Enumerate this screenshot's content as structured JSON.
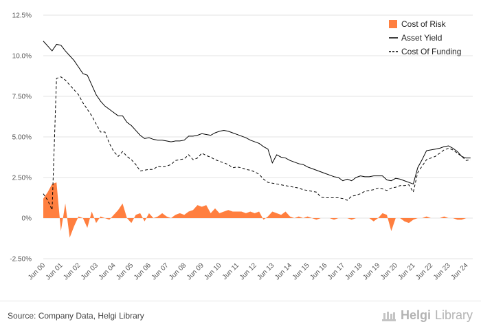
{
  "chart_data": {
    "type": "line",
    "ylim": [
      -2.5,
      12.5
    ],
    "y_ticks": [
      "-2.50%",
      "0%",
      "2.50%",
      "5.00%",
      "7.50%",
      "10.0%",
      "12.5%"
    ],
    "y_tick_values": [
      -2.5,
      0,
      2.5,
      5,
      7.5,
      10,
      12.5
    ],
    "x_start": 2000.5,
    "x_end": 2024.875,
    "x_ticks": [
      "Jun 00",
      "Jun 01",
      "Jun 02",
      "Jun 03",
      "Jun 04",
      "Jun 05",
      "Jun 06",
      "Jun 07",
      "Jun 08",
      "Jun 09",
      "Jun 10",
      "Jun 11",
      "Jun 12",
      "Jun 13",
      "Jun 14",
      "Jun 15",
      "Jun 16",
      "Jun 17",
      "Jun 18",
      "Jun 19",
      "Jun 20",
      "Jun 21",
      "Jun 22",
      "Jun 23",
      "Jun 24"
    ],
    "grid": "horizontal",
    "legend_position": "top-right",
    "colors": {
      "cost_of_risk": "#ff7f3f",
      "asset_yield": "#000000",
      "cost_of_funding": "#000000",
      "grid": "#e3e3e3"
    },
    "series": [
      {
        "name": "Cost of Risk",
        "style": "area",
        "x": [
          2000.5,
          2000.75,
          2001.0,
          2001.25,
          2001.5,
          2001.75,
          2002.0,
          2002.25,
          2002.5,
          2002.75,
          2003.0,
          2003.25,
          2003.5,
          2003.75,
          2004.0,
          2004.25,
          2004.5,
          2004.75,
          2005.0,
          2005.25,
          2005.5,
          2005.75,
          2006.0,
          2006.25,
          2006.5,
          2006.75,
          2007.0,
          2007.25,
          2007.5,
          2007.75,
          2008.0,
          2008.25,
          2008.5,
          2008.75,
          2009.0,
          2009.25,
          2009.5,
          2009.75,
          2010.0,
          2010.25,
          2010.5,
          2010.75,
          2011.0,
          2011.25,
          2011.5,
          2011.75,
          2012.0,
          2012.25,
          2012.5,
          2012.75,
          2013.0,
          2013.25,
          2013.5,
          2013.75,
          2014.0,
          2014.25,
          2014.5,
          2014.75,
          2015.0,
          2015.25,
          2015.5,
          2015.75,
          2016.0,
          2016.25,
          2016.5,
          2016.75,
          2017.0,
          2017.25,
          2017.5,
          2017.75,
          2018.0,
          2018.25,
          2018.5,
          2018.75,
          2019.0,
          2019.25,
          2019.5,
          2019.75,
          2020.0,
          2020.25,
          2020.5,
          2020.75,
          2021.0,
          2021.25,
          2021.5,
          2021.75,
          2022.0,
          2022.25,
          2022.5,
          2022.75,
          2023.0,
          2023.25,
          2023.5,
          2023.75,
          2024.0,
          2024.25,
          2024.5,
          2024.75
        ],
        "values": [
          1.2,
          1.6,
          2.1,
          2.2,
          -0.8,
          0.9,
          -1.2,
          -0.5,
          0.1,
          0.0,
          -0.6,
          0.4,
          -0.3,
          0.1,
          0.0,
          -0.1,
          0.2,
          0.5,
          0.9,
          0.0,
          -0.3,
          0.2,
          0.3,
          -0.2,
          0.3,
          0.0,
          0.1,
          0.3,
          0.1,
          0.0,
          0.2,
          0.3,
          0.2,
          0.4,
          0.5,
          0.8,
          0.7,
          0.8,
          0.3,
          0.6,
          0.3,
          0.4,
          0.5,
          0.4,
          0.4,
          0.4,
          0.3,
          0.4,
          0.3,
          0.4,
          -0.1,
          0.1,
          0.4,
          0.3,
          0.2,
          0.4,
          0.1,
          0.0,
          0.1,
          0.0,
          0.1,
          0.0,
          -0.1,
          0.0,
          0.0,
          0.0,
          -0.1,
          0.0,
          0.0,
          0.0,
          -0.1,
          0.0,
          0.0,
          0.0,
          0.0,
          -0.2,
          0.0,
          0.3,
          0.2,
          -0.8,
          0.0,
          0.0,
          -0.2,
          -0.3,
          -0.1,
          0.0,
          0.0,
          0.1,
          0.0,
          0.0,
          0.0,
          0.1,
          0.0,
          0.0,
          -0.1,
          -0.1,
          0.0,
          0.0
        ]
      },
      {
        "name": "Asset Yield",
        "style": "solid",
        "x": [
          2000.5,
          2000.75,
          2001.0,
          2001.25,
          2001.5,
          2001.75,
          2002.0,
          2002.25,
          2002.5,
          2002.75,
          2003.0,
          2003.25,
          2003.5,
          2003.75,
          2004.0,
          2004.25,
          2004.5,
          2004.75,
          2005.0,
          2005.25,
          2005.5,
          2005.75,
          2006.0,
          2006.25,
          2006.5,
          2006.75,
          2007.0,
          2007.25,
          2007.5,
          2007.75,
          2008.0,
          2008.25,
          2008.5,
          2008.75,
          2009.0,
          2009.25,
          2009.5,
          2009.75,
          2010.0,
          2010.25,
          2010.5,
          2010.75,
          2011.0,
          2011.25,
          2011.5,
          2011.75,
          2012.0,
          2012.25,
          2012.5,
          2012.75,
          2013.0,
          2013.25,
          2013.5,
          2013.75,
          2014.0,
          2014.25,
          2014.5,
          2014.75,
          2015.0,
          2015.25,
          2015.5,
          2015.75,
          2016.0,
          2016.25,
          2016.5,
          2016.75,
          2017.0,
          2017.25,
          2017.5,
          2017.75,
          2018.0,
          2018.25,
          2018.5,
          2018.75,
          2019.0,
          2019.25,
          2019.5,
          2019.75,
          2020.0,
          2020.25,
          2020.5,
          2020.75,
          2021.0,
          2021.25,
          2021.5,
          2021.75,
          2022.0,
          2022.25,
          2022.5,
          2022.75,
          2023.0,
          2023.25,
          2023.5,
          2023.75,
          2024.0,
          2024.25,
          2024.5,
          2024.75
        ],
        "values": [
          10.9,
          10.6,
          10.3,
          10.7,
          10.65,
          10.3,
          10.0,
          9.7,
          9.3,
          8.9,
          8.8,
          8.2,
          7.6,
          7.2,
          6.9,
          6.7,
          6.5,
          6.3,
          6.3,
          5.9,
          5.7,
          5.4,
          5.1,
          4.9,
          4.95,
          4.85,
          4.8,
          4.8,
          4.75,
          4.7,
          4.75,
          4.75,
          4.8,
          5.05,
          5.05,
          5.1,
          5.2,
          5.15,
          5.1,
          5.25,
          5.35,
          5.4,
          5.35,
          5.25,
          5.15,
          5.05,
          4.95,
          4.8,
          4.7,
          4.6,
          4.4,
          4.25,
          3.4,
          3.9,
          3.75,
          3.7,
          3.55,
          3.45,
          3.35,
          3.3,
          3.15,
          3.05,
          2.95,
          2.85,
          2.75,
          2.65,
          2.55,
          2.5,
          2.3,
          2.4,
          2.3,
          2.5,
          2.6,
          2.55,
          2.55,
          2.6,
          2.6,
          2.6,
          2.35,
          2.3,
          2.45,
          2.4,
          2.3,
          2.2,
          2.1,
          3.1,
          3.6,
          4.15,
          4.2,
          4.25,
          4.3,
          4.4,
          4.45,
          4.3,
          4.1,
          3.8,
          3.7,
          3.7
        ]
      },
      {
        "name": "Cost Of Funding",
        "style": "dashed",
        "x": [
          2000.5,
          2000.75,
          2001.0,
          2001.25,
          2001.5,
          2001.75,
          2002.0,
          2002.25,
          2002.5,
          2002.75,
          2003.0,
          2003.25,
          2003.5,
          2003.75,
          2004.0,
          2004.25,
          2004.5,
          2004.75,
          2005.0,
          2005.25,
          2005.5,
          2005.75,
          2006.0,
          2006.25,
          2006.5,
          2006.75,
          2007.0,
          2007.25,
          2007.5,
          2007.75,
          2008.0,
          2008.25,
          2008.5,
          2008.75,
          2009.0,
          2009.25,
          2009.5,
          2009.75,
          2010.0,
          2010.25,
          2010.5,
          2010.75,
          2011.0,
          2011.25,
          2011.5,
          2011.75,
          2012.0,
          2012.25,
          2012.5,
          2012.75,
          2013.0,
          2013.25,
          2013.5,
          2013.75,
          2014.0,
          2014.25,
          2014.5,
          2014.75,
          2015.0,
          2015.25,
          2015.5,
          2015.75,
          2016.0,
          2016.25,
          2016.5,
          2016.75,
          2017.0,
          2017.25,
          2017.5,
          2017.75,
          2018.0,
          2018.25,
          2018.5,
          2018.75,
          2019.0,
          2019.25,
          2019.5,
          2019.75,
          2020.0,
          2020.25,
          2020.5,
          2020.75,
          2021.0,
          2021.25,
          2021.5,
          2021.75,
          2022.0,
          2022.25,
          2022.5,
          2022.75,
          2023.0,
          2023.25,
          2023.5,
          2023.75,
          2024.0,
          2024.25,
          2024.5,
          2024.75
        ],
        "values": [
          1.5,
          1.1,
          0.5,
          8.6,
          8.7,
          8.5,
          8.2,
          7.9,
          7.6,
          7.1,
          6.7,
          6.3,
          5.8,
          5.3,
          5.3,
          4.6,
          4.1,
          3.8,
          4.1,
          3.8,
          3.6,
          3.3,
          2.9,
          2.95,
          3.0,
          3.0,
          3.2,
          3.15,
          3.2,
          3.3,
          3.55,
          3.6,
          3.65,
          3.9,
          3.6,
          3.7,
          4.0,
          3.85,
          3.75,
          3.6,
          3.5,
          3.4,
          3.3,
          3.1,
          3.15,
          3.1,
          3.0,
          2.95,
          2.85,
          2.7,
          2.4,
          2.2,
          2.15,
          2.1,
          2.05,
          2.0,
          1.95,
          1.9,
          1.85,
          1.75,
          1.7,
          1.65,
          1.6,
          1.3,
          1.25,
          1.25,
          1.25,
          1.25,
          1.2,
          1.1,
          1.35,
          1.4,
          1.5,
          1.65,
          1.7,
          1.75,
          1.85,
          1.8,
          1.7,
          1.85,
          1.9,
          2.0,
          2.0,
          2.05,
          1.6,
          2.8,
          3.2,
          3.6,
          3.7,
          3.8,
          4.0,
          4.2,
          4.3,
          4.2,
          4.0,
          3.8,
          3.55,
          3.6
        ]
      }
    ]
  },
  "footer": {
    "source": "Source: Company Data, Helgi Library",
    "brand_helgi": "Helgi",
    "brand_library": "Library"
  }
}
